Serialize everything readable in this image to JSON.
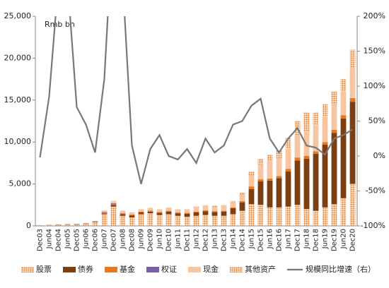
{
  "chart_data": {
    "type": "bar",
    "stacked": true,
    "y_unit_label": "Rmb bn",
    "categories": [
      "Dec03",
      "Jun04",
      "Dec04",
      "Jun05",
      "Dec05",
      "Jun06",
      "Dec06",
      "Jun07",
      "Dec07",
      "Jun08",
      "Dec08",
      "Jun09",
      "Dec09",
      "Jun10",
      "Dec10",
      "Jun11",
      "Dec11",
      "Jun12",
      "Dec12",
      "Jun13",
      "Dec13",
      "Jun14",
      "Dec14",
      "Jun15",
      "Dec15",
      "Jun16",
      "Dec16",
      "Jun17",
      "Dec17",
      "Jun18",
      "Dec18",
      "Jun19",
      "Dec19",
      "Jun20",
      "Dec20"
    ],
    "series": [
      {
        "name": "股票",
        "color": "#e87722",
        "pattern": "dots",
        "values": [
          60,
          90,
          120,
          150,
          150,
          220,
          450,
          1400,
          2300,
          1200,
          1000,
          1400,
          1500,
          1300,
          1400,
          1200,
          1100,
          1200,
          1300,
          1200,
          1200,
          1400,
          1800,
          2600,
          2500,
          2200,
          2200,
          2300,
          2500,
          2000,
          1800,
          2200,
          2600,
          3300,
          5000
        ]
      },
      {
        "name": "债券",
        "color": "#7b3f12",
        "values": [
          10,
          20,
          30,
          40,
          50,
          50,
          60,
          100,
          200,
          200,
          250,
          200,
          200,
          250,
          300,
          300,
          350,
          400,
          450,
          450,
          500,
          700,
          1000,
          1800,
          2800,
          3200,
          3500,
          4200,
          5300,
          6000,
          6800,
          7500,
          8500,
          9500,
          9800
        ]
      },
      {
        "name": "基金",
        "color": "#e8781e",
        "values": [
          5,
          5,
          10,
          10,
          10,
          20,
          30,
          100,
          150,
          100,
          100,
          100,
          120,
          100,
          100,
          100,
          100,
          100,
          100,
          100,
          100,
          100,
          150,
          300,
          250,
          250,
          250,
          300,
          350,
          350,
          300,
          300,
          350,
          400,
          450
        ]
      },
      {
        "name": "权证",
        "color": "#7a5ea8",
        "values": [
          0,
          0,
          0,
          0,
          0,
          10,
          20,
          50,
          50,
          20,
          10,
          10,
          5,
          5,
          5,
          0,
          0,
          0,
          0,
          0,
          0,
          0,
          0,
          0,
          0,
          0,
          0,
          0,
          0,
          0,
          0,
          0,
          0,
          0,
          0
        ]
      },
      {
        "name": "现金",
        "color": "#f7c59f",
        "values": [
          20,
          30,
          30,
          40,
          30,
          60,
          30,
          100,
          200,
          200,
          200,
          250,
          300,
          300,
          300,
          350,
          400,
          500,
          500,
          500,
          550,
          650,
          800,
          1300,
          1800,
          2000,
          2100,
          2400,
          2700,
          3000,
          3100,
          3000,
          3000,
          2800,
          3500
        ]
      },
      {
        "name": "其他资产",
        "color": "#e87722",
        "pattern": "dots",
        "values": [
          5,
          5,
          10,
          10,
          10,
          10,
          10,
          50,
          100,
          80,
          40,
          40,
          75,
          45,
          95,
          50,
          50,
          100,
          150,
          150,
          150,
          150,
          250,
          500,
          650,
          850,
          950,
          1300,
          1650,
          2150,
          1500,
          1500,
          1550,
          1500,
          2250
        ]
      },
      {
        "name": "规模同比增速（右）",
        "type": "line",
        "axis": "y2",
        "color": "#777777",
        "values": [
          -2,
          85,
          250,
          250,
          70,
          45,
          5,
          110,
          350,
          250,
          15,
          -40,
          10,
          30,
          0,
          -5,
          10,
          -10,
          25,
          5,
          15,
          45,
          50,
          72,
          82,
          25,
          5,
          25,
          40,
          15,
          12,
          2,
          25,
          30,
          38
        ]
      }
    ],
    "ylim": [
      0,
      25000
    ],
    "yticks": [
      0,
      {
        "value": 5000,
        "label": "5,000"
      },
      {
        "value": 10000,
        "label": "10,000"
      },
      {
        "value": 15000,
        "label": "15,000"
      },
      {
        "value": 20000,
        "label": "20,000"
      },
      {
        "value": 25000,
        "label": "25,000"
      }
    ],
    "y2lim": [
      -100,
      200
    ],
    "y2ticks": [
      {
        "value": -100,
        "label": "-100%"
      },
      {
        "value": -50,
        "label": "-50%"
      },
      {
        "value": 0,
        "label": "0%"
      },
      {
        "value": 50,
        "label": "50%"
      },
      {
        "value": 100,
        "label": "100%"
      },
      {
        "value": 150,
        "label": "150%"
      },
      {
        "value": 200,
        "label": "200%"
      }
    ],
    "legend": "bottom"
  }
}
